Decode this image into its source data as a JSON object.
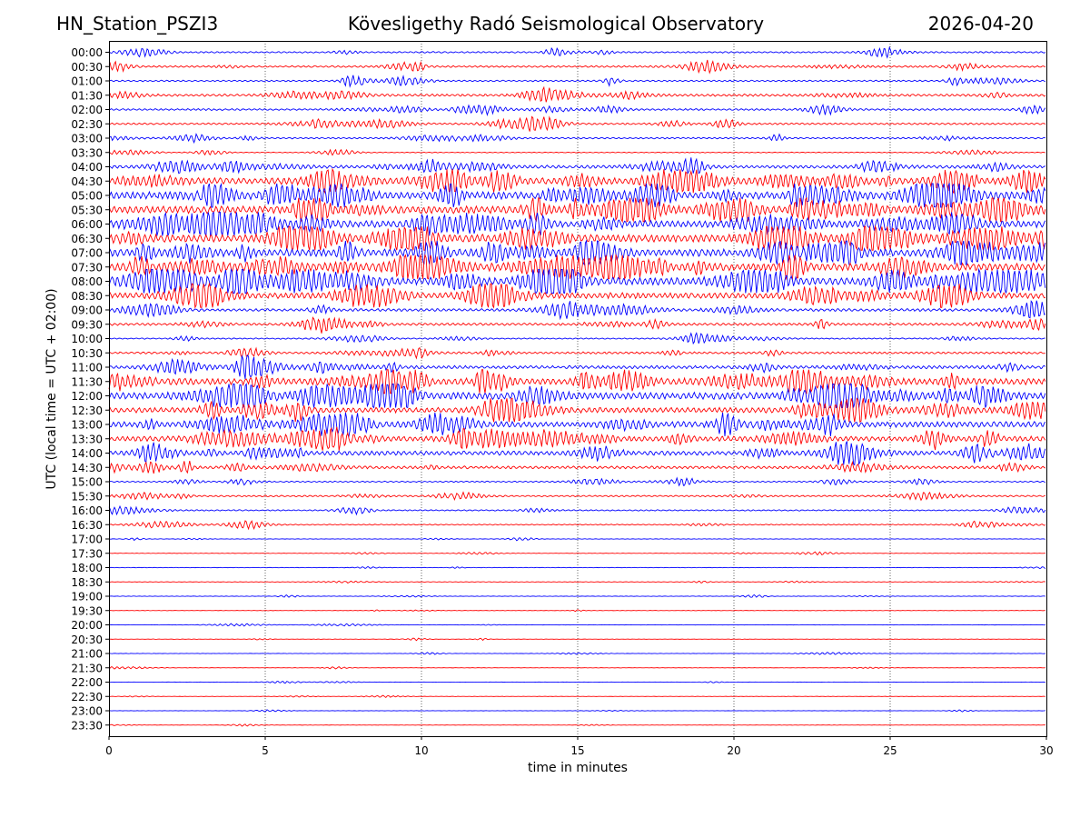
{
  "header": {
    "station": "HN_Station_PSZI3",
    "observatory": "Kövesligethy Radó Seismological Observatory",
    "date": "2026-04-20"
  },
  "chart_data": {
    "type": "line",
    "title": "Kövesligethy Radó Seismological Observatory",
    "xlabel": "time in minutes",
    "ylabel": "UTC (local time = UTC + 02:00)",
    "xlim": [
      0,
      30
    ],
    "xticks": [
      "0",
      "5",
      "10",
      "15",
      "20",
      "25",
      "30"
    ],
    "grid": "vertical dotted lines at each x tick",
    "colors": [
      "#0000ff",
      "#ff0000"
    ],
    "rows": [
      "00:00",
      "00:30",
      "01:00",
      "01:30",
      "02:00",
      "02:30",
      "03:00",
      "03:30",
      "04:00",
      "04:30",
      "05:00",
      "05:30",
      "06:00",
      "06:30",
      "07:00",
      "07:30",
      "08:00",
      "08:30",
      "09:00",
      "09:30",
      "10:00",
      "10:30",
      "11:00",
      "11:30",
      "12:00",
      "12:30",
      "13:00",
      "13:30",
      "14:00",
      "14:30",
      "15:00",
      "15:30",
      "16:00",
      "16:30",
      "17:00",
      "17:30",
      "18:00",
      "18:30",
      "19:00",
      "19:30",
      "20:00",
      "20:30",
      "21:00",
      "21:30",
      "22:00",
      "22:30",
      "23:00",
      "23:30"
    ],
    "activity_level": [
      0.3,
      0.35,
      0.3,
      0.45,
      0.35,
      0.35,
      0.3,
      0.15,
      0.55,
      0.9,
      1.0,
      1.0,
      0.95,
      1.0,
      1.0,
      1.0,
      1.0,
      0.85,
      0.5,
      0.45,
      0.25,
      0.4,
      0.55,
      0.9,
      0.95,
      0.8,
      0.85,
      0.8,
      0.7,
      0.5,
      0.25,
      0.3,
      0.25,
      0.2,
      0.06,
      0.04,
      0.06,
      0.06,
      0.05,
      0.03,
      0.02,
      0.02,
      0.02,
      0.02,
      0.015,
      0.015,
      0.015,
      0.015
    ]
  }
}
